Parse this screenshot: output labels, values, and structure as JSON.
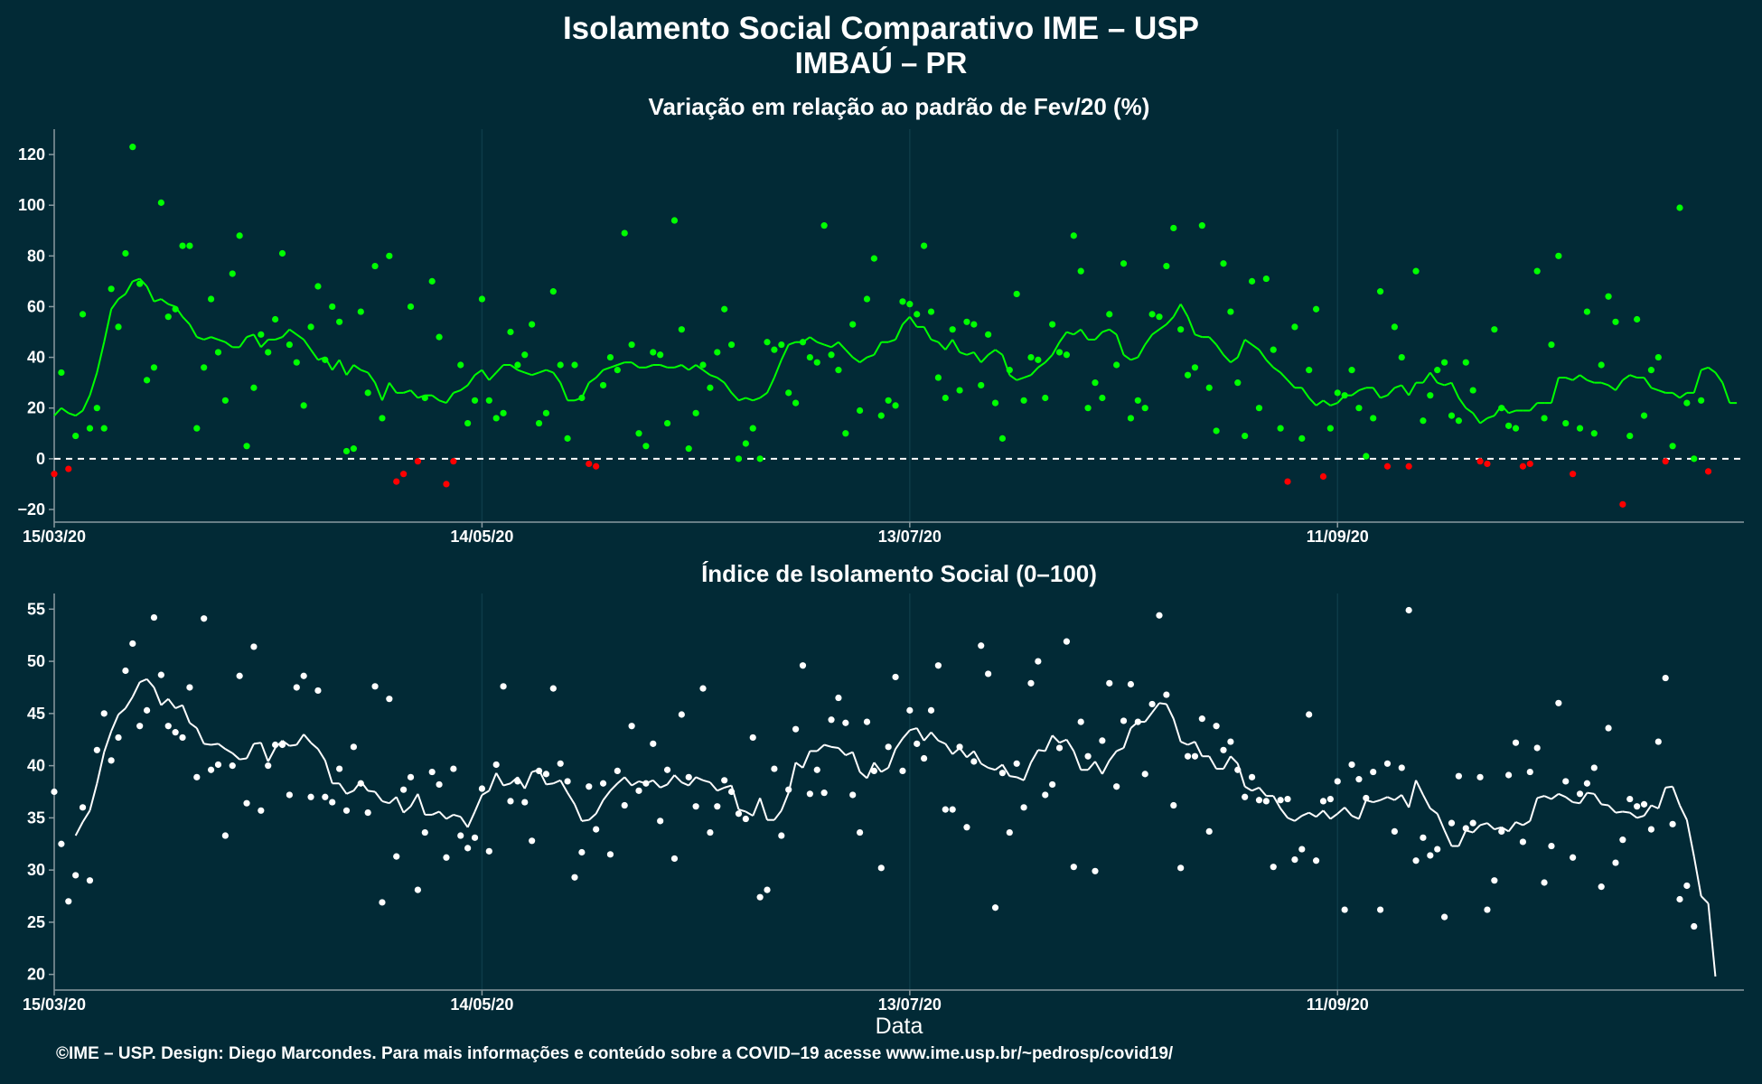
{
  "header": {
    "title": "Isolamento Social Comparativo IME – USP",
    "subtitle": "IMBAÚ – PR"
  },
  "footer": {
    "credit": "©IME – USP. Design: Diego Marcondes. Para mais informações e conteúdo sobre a COVID–19 acesse www.ime.usp.br/~pedrosp/covid19/"
  },
  "colors": {
    "background": "#022a36",
    "positive": "#00ff00",
    "negative": "#ff0000",
    "index": "#ffffff",
    "grid": "#0d3b48"
  },
  "chart_data": [
    {
      "type": "scatter",
      "title": "Variação em relação ao padrão de Fev/20 (%)",
      "xlabel": "",
      "ylabel": "",
      "x_start": "15/03/20",
      "x_tick_labels": [
        "15/03/20",
        "14/05/20",
        "13/07/20",
        "11/09/20"
      ],
      "x_tick_days": [
        0,
        60,
        120,
        180
      ],
      "xlim_days": [
        0,
        237
      ],
      "ylim": [
        -25,
        130
      ],
      "y_ticks": [
        -20,
        0,
        20,
        40,
        60,
        80,
        100,
        120
      ],
      "reference_line": 0,
      "grid": true,
      "series": [
        {
          "values": [
            -6,
            34,
            -4,
            9,
            57,
            12,
            20,
            12,
            67,
            52,
            81,
            123,
            69,
            31,
            36,
            101,
            56,
            59,
            84,
            84,
            12,
            36,
            63,
            42,
            23,
            73,
            88,
            5,
            28,
            49,
            42,
            55,
            81,
            45,
            38,
            21,
            52,
            68,
            39,
            60,
            54,
            3,
            4,
            58,
            26,
            76,
            16,
            80,
            -9,
            -6,
            60,
            -1,
            24,
            70,
            48,
            -10,
            -1,
            37,
            14,
            23,
            63,
            23,
            16,
            18,
            50,
            37,
            41,
            53,
            14,
            18,
            66,
            37,
            8,
            37,
            24,
            -2,
            -3,
            29,
            40,
            35,
            89,
            45,
            10,
            5,
            42,
            41,
            14,
            94,
            51,
            4,
            18,
            37,
            28,
            42,
            59,
            45,
            0,
            6,
            12,
            0,
            46,
            43,
            45,
            26,
            22,
            46,
            40,
            38,
            92,
            41,
            35,
            10,
            53,
            19,
            63,
            79,
            17,
            23,
            21,
            62,
            61,
            57,
            84,
            58,
            32,
            24,
            51,
            27,
            54,
            53,
            29,
            49,
            22,
            8,
            35,
            65,
            23,
            40,
            39,
            24,
            53,
            42,
            41,
            88,
            74,
            20,
            30,
            24,
            57,
            37,
            77,
            16,
            23,
            20,
            57,
            56,
            76,
            91,
            51,
            33,
            36,
            92,
            28,
            11,
            77,
            58,
            30,
            9,
            70,
            20,
            71,
            43,
            12,
            -9,
            52,
            8,
            35,
            59,
            -7,
            12,
            26,
            25,
            35,
            20,
            1,
            16,
            66,
            -3,
            52,
            40,
            -3,
            74,
            15,
            25,
            35,
            38,
            17,
            15,
            38,
            27,
            -1,
            -2,
            51,
            20,
            13,
            12,
            -3,
            -2,
            74,
            16,
            45,
            80,
            14,
            -6,
            12,
            58,
            10,
            37,
            64,
            54,
            -18,
            9,
            55,
            17,
            35,
            40,
            -1,
            5,
            99,
            22,
            0,
            23,
            -5
          ],
          "trend": [
            17,
            20,
            18,
            17,
            19,
            25,
            34,
            46,
            59,
            63,
            65,
            70,
            71,
            68,
            62,
            63,
            61,
            60,
            56,
            53,
            48,
            47,
            48,
            47,
            46,
            44,
            44,
            48,
            49,
            44,
            47,
            47,
            48,
            51,
            49,
            47,
            43,
            39,
            40,
            35,
            39,
            33,
            37,
            35,
            34,
            30,
            23,
            30,
            26,
            26,
            27,
            24,
            25,
            25,
            23,
            22,
            26,
            27,
            29,
            33,
            35,
            31,
            34,
            37,
            37,
            35,
            34,
            33,
            34,
            35,
            34,
            30,
            23,
            23,
            24,
            30,
            32,
            35,
            36,
            37,
            38,
            38,
            36,
            36,
            37,
            37,
            36,
            36,
            37,
            35,
            37,
            35,
            33,
            32,
            30,
            26,
            23,
            24,
            23,
            24,
            26,
            32,
            39,
            45,
            46,
            46,
            48,
            46,
            45,
            44,
            46,
            43,
            40,
            38,
            40,
            41,
            46,
            46,
            47,
            53,
            56,
            52,
            52,
            47,
            46,
            43,
            47,
            42,
            41,
            42,
            38,
            41,
            43,
            41,
            33,
            31,
            32,
            33,
            36,
            38,
            41,
            46,
            50,
            49,
            51,
            47,
            47,
            50,
            51,
            49,
            41,
            39,
            40,
            45,
            49,
            51,
            53,
            56,
            61,
            56,
            49,
            48,
            48,
            45,
            41,
            38,
            40,
            47,
            45,
            43,
            39,
            36,
            34,
            31,
            28,
            28,
            24,
            21,
            23,
            21,
            22,
            25,
            25,
            27,
            28,
            28,
            24,
            25,
            28,
            29,
            25,
            30,
            30,
            34,
            30,
            29,
            30,
            24,
            20,
            18,
            14,
            16,
            17,
            21,
            18,
            19,
            19,
            19,
            22,
            22,
            22,
            32,
            32,
            31,
            33,
            31,
            30,
            30,
            29,
            27,
            31,
            33,
            32,
            32,
            28,
            27,
            26,
            26,
            24,
            26,
            26,
            35,
            36,
            34,
            30,
            22,
            22
          ]
        }
      ]
    },
    {
      "type": "scatter",
      "title": "Índice de Isolamento Social (0–100)",
      "xlabel": "Data",
      "ylabel": "",
      "x_start": "15/03/20",
      "x_tick_labels": [
        "15/03/20",
        "14/05/20",
        "13/07/20",
        "11/09/20"
      ],
      "x_tick_days": [
        0,
        60,
        120,
        180
      ],
      "xlim_days": [
        0,
        237
      ],
      "ylim": [
        18.5,
        56.5
      ],
      "y_ticks": [
        20,
        25,
        30,
        35,
        40,
        45,
        50,
        55
      ],
      "grid": true,
      "series": [
        {
          "values": [
            37.5,
            32.5,
            27,
            29.5,
            36,
            29,
            41.5,
            45,
            40.5,
            42.7,
            49.1,
            51.7,
            43.8,
            45.3,
            54.2,
            48.7,
            43.8,
            43.2,
            42.7,
            47.5,
            38.9,
            54.1,
            39.6,
            40.1,
            33.3,
            40,
            48.6,
            36.4,
            51.4,
            35.7,
            40,
            42,
            42,
            37.2,
            47.5,
            48.6,
            37,
            47.2,
            37,
            36.5,
            39.7,
            35.7,
            41.8,
            38.3,
            35.5,
            47.6,
            26.9,
            46.4,
            31.3,
            37.7,
            38.9,
            28.1,
            33.6,
            39.4,
            38.2,
            31.2,
            39.7,
            33.3,
            32.1,
            33.1,
            37.8,
            31.8,
            40.1,
            47.6,
            36.6,
            38.5,
            36.5,
            32.8,
            39.5,
            39.2,
            47.4,
            40.2,
            38.5,
            29.3,
            31.7,
            38,
            33.9,
            38.3,
            31.5,
            39.5,
            36.2,
            43.8,
            37.6,
            38.3,
            42.1,
            34.7,
            39.6,
            31.1,
            44.9,
            38.9,
            36.1,
            47.4,
            33.6,
            36.1,
            38.6,
            37.5,
            35.4,
            34.9,
            42.7,
            27.4,
            28.1,
            39.7,
            33.3,
            37.7,
            43.5,
            49.6,
            37.3,
            39.6,
            37.4,
            44.4,
            46.5,
            44.1,
            37.2,
            33.6,
            44.2,
            39.5,
            30.2,
            41.8,
            48.5,
            39.5,
            45.3,
            42.1,
            40.7,
            45.3,
            49.6,
            35.8,
            35.8,
            41.8,
            34.1,
            40.4,
            51.5,
            48.8,
            26.4,
            39.3,
            33.6,
            40.2,
            36,
            47.9,
            50,
            37.2,
            38.2,
            41.7,
            51.9,
            30.3,
            44.2,
            40.9,
            29.9,
            42.4,
            47.9,
            38,
            44.3,
            47.8,
            44.2,
            39.2,
            45.9,
            54.4,
            46.8,
            36.2,
            30.2,
            40.9,
            40.9,
            44.5,
            33.7,
            43.8,
            41.5,
            42.3,
            39.6,
            37,
            38.9,
            36.7,
            36.6,
            30.3,
            36.7,
            36.8,
            31,
            32,
            44.9,
            30.9,
            36.6,
            36.8,
            38.5,
            26.2,
            40.1,
            38.7,
            36.9,
            39.4,
            26.2,
            40.2,
            33.7,
            39.8,
            54.9,
            30.9,
            33.1,
            31.4,
            32,
            25.5,
            34.5,
            39,
            34,
            34.5,
            38.9,
            26.2,
            29,
            33.7,
            39.1,
            42.2,
            32.7,
            39.4,
            41.7,
            28.8,
            32.3,
            46,
            38.5,
            31.2,
            37.3,
            38.3,
            39.8,
            28.4,
            43.6,
            30.7,
            32.9,
            36.8,
            36.1,
            36.3,
            33.9,
            42.3,
            48.4,
            34.4,
            27.2,
            28.5,
            24.6
          ],
          "trend": [
            null,
            null,
            null,
            33.3,
            34.6,
            35.7,
            38.3,
            41.3,
            43.3,
            44.9,
            45.5,
            46.6,
            48,
            48.3,
            47.5,
            45.8,
            46.4,
            45.5,
            45.8,
            44.1,
            43.6,
            42.1,
            42,
            42.1,
            41.6,
            41.2,
            40.6,
            40.7,
            42.1,
            42.2,
            40.4,
            41.7,
            42.4,
            41.9,
            42,
            43,
            42.2,
            41.6,
            40.5,
            38.3,
            38.3,
            37.3,
            37.6,
            38.5,
            37.6,
            37.5,
            36.6,
            36.4,
            37,
            35.5,
            36.1,
            37.3,
            35.3,
            35.3,
            35.6,
            34.9,
            35.3,
            35.1,
            34.1,
            35.6,
            37.2,
            37.6,
            39.3,
            38.1,
            38.3,
            38.9,
            37.8,
            39.4,
            39.6,
            38.2,
            38.3,
            38.6,
            37.4,
            36.3,
            34.7,
            34.8,
            35.4,
            36.7,
            37.6,
            38.3,
            38.9,
            38.1,
            38.5,
            38.3,
            38.6,
            37.9,
            38.2,
            39.1,
            38.4,
            38.1,
            38.9,
            38.6,
            38.4,
            37.6,
            37.9,
            38.1,
            35.8,
            35.6,
            35.2,
            36.9,
            34.8,
            34.8,
            35.7,
            37.4,
            40.3,
            39.8,
            41.4,
            41.4,
            42,
            41.8,
            41.7,
            41,
            41.3,
            39.4,
            38.8,
            40.3,
            39.4,
            39.8,
            41.6,
            42.6,
            43.4,
            43.6,
            42.4,
            43.2,
            42.4,
            42.1,
            41.1,
            41.7,
            40.8,
            41.4,
            40.2,
            39.8,
            39.6,
            40.1,
            39,
            38.9,
            38.6,
            40.3,
            41.5,
            41.4,
            42.9,
            42.2,
            42.5,
            41.4,
            39.6,
            39.6,
            40.4,
            39.2,
            40.5,
            41.4,
            41.7,
            43.6,
            44.2,
            44.2,
            45.1,
            46,
            45.9,
            44.5,
            42.3,
            42,
            42.3,
            40.9,
            40.9,
            39.7,
            39.7,
            40.9,
            40.2,
            38,
            37.6,
            37.9,
            37.1,
            37.1,
            35.9,
            35,
            34.7,
            35.2,
            35.5,
            35.1,
            35.7,
            34.9,
            35.4,
            36,
            35.2,
            34.9,
            36.7,
            36.5,
            36.7,
            37,
            36.7,
            37.2,
            36,
            38.6,
            37.2,
            35.9,
            35.4,
            33.8,
            32.3,
            32.3,
            33.8,
            33.6,
            34.3,
            34.5,
            33.9,
            34.1,
            33.7,
            34.6,
            34.3,
            34.7,
            36.9,
            37.1,
            36.8,
            37.3,
            37,
            36.5,
            36.4,
            37.4,
            37.3,
            36.3,
            36.2,
            35.5,
            35.6,
            35.5,
            35,
            35.2,
            36.2,
            35.9,
            37.9,
            38,
            36.2,
            34.8,
            31.3,
            27.5,
            26.8,
            19.8
          ]
        }
      ]
    }
  ]
}
